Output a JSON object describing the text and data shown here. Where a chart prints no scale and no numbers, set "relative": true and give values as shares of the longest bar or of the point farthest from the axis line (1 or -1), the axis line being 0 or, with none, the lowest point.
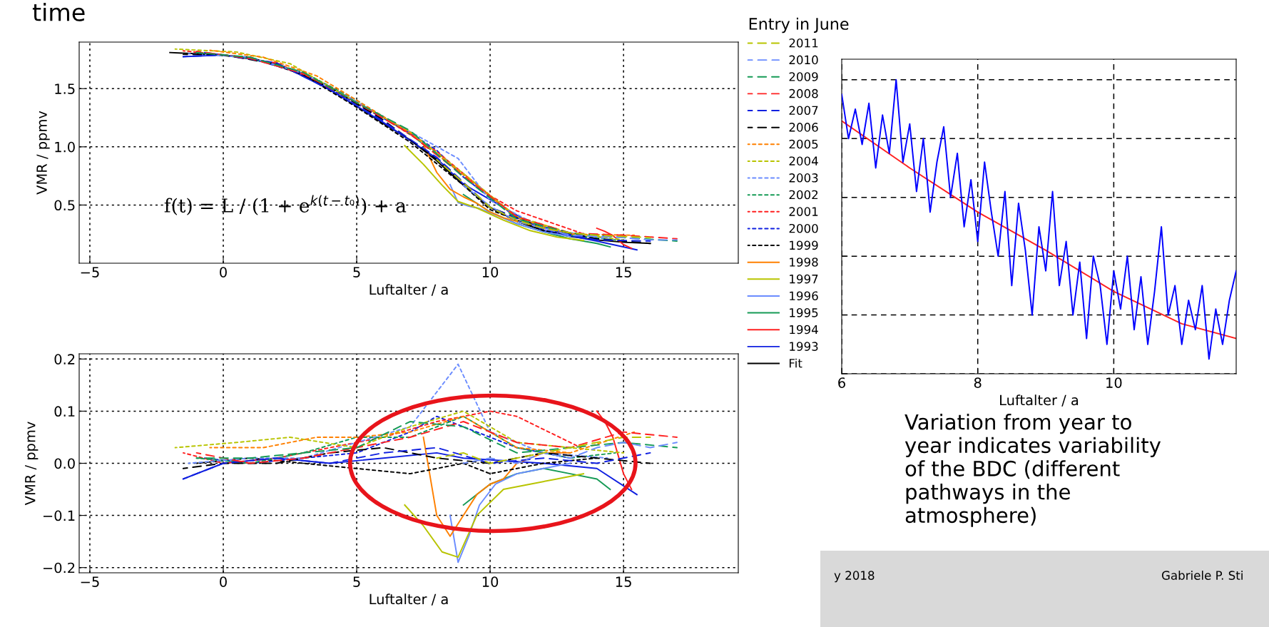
{
  "chart_data": [
    {
      "type": "line",
      "xlabel": "Luftalter / a",
      "ylabel": "VMR / ppmv",
      "xlim": [
        -5.4,
        19.3
      ],
      "ylim": [
        0,
        1.9
      ],
      "xticks": [
        {
          "value": -5,
          "label": "−5"
        },
        0,
        5,
        10,
        15
      ],
      "yticks": [
        {
          "value": 0.5,
          "label": "0.5"
        },
        {
          "value": 1.0,
          "label": "1.0"
        },
        {
          "value": 1.5,
          "label": "1.5"
        }
      ],
      "grid": true,
      "legend": "right",
      "legend_title": "Entry in June",
      "annotations": [
        "f(t) = L / (1 + e$^{k(t−t₀)}$) + a",
        "time"
      ],
      "series": [
        {
          "name": "2011",
          "color": "#b8c400",
          "line_style": "dashed",
          "x": [
            8,
            9,
            10,
            11,
            12,
            13,
            14,
            15,
            16
          ],
          "values": [
            0.89,
            0.69,
            0.48,
            0.37,
            0.3,
            0.26,
            0.24,
            0.23,
            0.22
          ]
        },
        {
          "name": "2010",
          "color": "#6b8cff",
          "line_style": "dashed",
          "x": [
            9,
            10,
            11,
            12,
            13,
            14,
            15,
            16,
            17
          ],
          "values": [
            0.67,
            0.49,
            0.36,
            0.3,
            0.24,
            0.23,
            0.22,
            0.2,
            0.2
          ]
        },
        {
          "name": "2009",
          "color": "#159a55",
          "line_style": "dashed",
          "x": [
            -1,
            1,
            3,
            5,
            7,
            9,
            11,
            13,
            15,
            17
          ],
          "values": [
            1.81,
            1.77,
            1.64,
            1.38,
            1.14,
            0.74,
            0.38,
            0.26,
            0.22,
            0.19
          ]
        },
        {
          "name": "2008",
          "color": "#ff2020",
          "line_style": "dashed",
          "x": [
            -1,
            1,
            3,
            5,
            7,
            9,
            11,
            13,
            15,
            17
          ],
          "values": [
            1.82,
            1.76,
            1.63,
            1.38,
            1.11,
            0.75,
            0.4,
            0.26,
            0.24,
            0.21
          ]
        },
        {
          "name": "2007",
          "color": "#1020e0",
          "line_style": "dashed",
          "x": [
            -1.5,
            0,
            2,
            4,
            6,
            8,
            10,
            12,
            14,
            16
          ],
          "values": [
            1.775,
            1.79,
            1.72,
            1.49,
            1.22,
            0.91,
            0.48,
            0.29,
            0.2,
            0.19
          ]
        },
        {
          "name": "2006",
          "color": "#000000",
          "line_style": "dashed",
          "x": [
            -1.5,
            0,
            2,
            4,
            6,
            8,
            10,
            12,
            14,
            16
          ],
          "values": [
            1.795,
            1.79,
            1.71,
            1.51,
            1.23,
            0.89,
            0.48,
            0.3,
            0.21,
            0.17
          ]
        },
        {
          "name": "2005",
          "color": "#ff8000",
          "line_style": "dotted",
          "x": [
            -0.5,
            1.5,
            3.5,
            5,
            7,
            9,
            11,
            13,
            15.4
          ],
          "values": [
            1.83,
            1.77,
            1.61,
            1.4,
            1.12,
            0.76,
            0.39,
            0.25,
            0.24
          ]
        },
        {
          "name": "2004",
          "color": "#b8c400",
          "line_style": "dotted",
          "x": [
            -1.8,
            0.5,
            2.5,
            5,
            7,
            9,
            11,
            13,
            15
          ],
          "values": [
            1.84,
            1.815,
            1.715,
            1.38,
            1.13,
            0.77,
            0.4,
            0.26,
            0.2
          ]
        },
        {
          "name": "2003",
          "color": "#6b8cff",
          "line_style": "dotted",
          "x": [
            -1.3,
            1,
            3,
            5,
            7,
            8.8,
            10,
            12,
            14.4
          ],
          "values": [
            1.8,
            1.77,
            1.63,
            1.39,
            1.13,
            0.9,
            0.54,
            0.3,
            0.21
          ]
        },
        {
          "name": "2002",
          "color": "#159a55",
          "line_style": "dotted",
          "x": [
            -1,
            1,
            3,
            5,
            7,
            9,
            11,
            13,
            14.7
          ],
          "values": [
            1.81,
            1.76,
            1.64,
            1.4,
            1.11,
            0.76,
            0.39,
            0.24,
            0.2
          ]
        },
        {
          "name": "2001",
          "color": "#ff2020",
          "line_style": "dotted",
          "x": [
            -1.5,
            0,
            2,
            4,
            6,
            8,
            10,
            11,
            13.4
          ],
          "values": [
            1.825,
            1.79,
            1.72,
            1.52,
            1.25,
            0.96,
            0.58,
            0.45,
            0.26
          ]
        },
        {
          "name": "2000",
          "color": "#1020e0",
          "line_style": "dotted",
          "x": [
            -0.7,
            1,
            3,
            5,
            7,
            8,
            9,
            11,
            13
          ],
          "values": [
            1.81,
            1.76,
            1.63,
            1.37,
            1.12,
            0.97,
            0.74,
            0.39,
            0.24
          ]
        },
        {
          "name": "1999",
          "color": "#000000",
          "line_style": "dotted",
          "x": [
            -1,
            1,
            3,
            5,
            7,
            9,
            10,
            12,
            14
          ],
          "values": [
            1.8,
            1.77,
            1.62,
            1.34,
            1.04,
            0.67,
            0.46,
            0.28,
            0.21
          ]
        },
        {
          "name": "1998",
          "color": "#ff8000",
          "line_style": "solid",
          "x": [
            7.5,
            8,
            8.5,
            9,
            9.5,
            10,
            10.5,
            11,
            12,
            13
          ],
          "values": [
            1.02,
            0.78,
            0.635,
            0.57,
            0.515,
            0.44,
            0.39,
            0.36,
            0.3,
            0.25
          ]
        },
        {
          "name": "1997",
          "color": "#b8c400",
          "line_style": "solid",
          "x": [
            6.8,
            7.5,
            8.2,
            8.8,
            9.5,
            10.5,
            11.5,
            12.5,
            13.5
          ],
          "values": [
            1.01,
            0.85,
            0.67,
            0.53,
            0.475,
            0.37,
            0.28,
            0.225,
            0.195
          ]
        },
        {
          "name": "1996",
          "color": "#6b8cff",
          "line_style": "solid",
          "x": [
            8.5,
            8.8,
            9.2,
            9.6,
            10.2,
            11,
            12,
            13
          ],
          "values": [
            0.675,
            0.52,
            0.49,
            0.47,
            0.416,
            0.34,
            0.27,
            0.23
          ]
        },
        {
          "name": "1995",
          "color": "#159a55",
          "line_style": "solid",
          "x": [
            9,
            9.5,
            10,
            11,
            12,
            13,
            14,
            14.5
          ],
          "values": [
            0.59,
            0.515,
            0.44,
            0.34,
            0.27,
            0.21,
            0.17,
            0.14
          ]
        },
        {
          "name": "1994",
          "color": "#ff2020",
          "line_style": "solid",
          "x": [
            14,
            14.3,
            14.6,
            15,
            15.3
          ],
          "values": [
            0.3,
            0.274,
            0.238,
            0.16,
            0.127
          ]
        },
        {
          "name": "1993",
          "color": "#1020e0",
          "line_style": "solid",
          "x": [
            -1.5,
            0,
            2,
            4,
            6,
            8,
            9,
            12,
            14,
            15.5
          ],
          "values": [
            1.775,
            1.79,
            1.72,
            1.49,
            1.21,
            0.9,
            0.68,
            0.28,
            0.19,
            0.115
          ]
        },
        {
          "name": "Fit",
          "color": "#000000",
          "line_style": "solid",
          "x": [
            -2,
            -1,
            0,
            1,
            2,
            3,
            4,
            5,
            6,
            7,
            8,
            9,
            10,
            11,
            12,
            13,
            14,
            15,
            16
          ],
          "values": [
            1.81,
            1.8,
            1.79,
            1.76,
            1.71,
            1.62,
            1.49,
            1.35,
            1.2,
            1.06,
            0.88,
            0.67,
            0.48,
            0.36,
            0.28,
            0.23,
            0.2,
            0.18,
            0.17
          ]
        }
      ]
    },
    {
      "type": "line",
      "xlabel": "Luftalter / a",
      "ylabel": "VMR / ppmv",
      "xlim": [
        -5.4,
        19.3
      ],
      "ylim": [
        -0.21,
        0.21
      ],
      "xticks": [
        {
          "value": -5,
          "label": "−5"
        },
        0,
        5,
        10,
        15
      ],
      "yticks": [
        {
          "value": -0.2,
          "label": "−0.2"
        },
        {
          "value": -0.1,
          "label": "−0.1"
        },
        {
          "value": 0.0,
          "label": "0.0"
        },
        0.1,
        0.2
      ],
      "grid": true,
      "series": [
        {
          "color": "#b8c400",
          "line_style": "dashed",
          "x": [
            8,
            9,
            10,
            11,
            12,
            13,
            14,
            15,
            16
          ],
          "values": [
            0.01,
            0.02,
            0.0,
            0.01,
            0.02,
            0.03,
            0.04,
            0.05,
            0.05
          ]
        },
        {
          "color": "#6b8cff",
          "line_style": "dashed",
          "x": [
            9,
            10,
            11,
            12,
            13,
            14,
            15,
            16,
            17
          ],
          "values": [
            0.0,
            0.01,
            0.0,
            0.02,
            0.01,
            0.03,
            0.04,
            0.03,
            0.04
          ]
        },
        {
          "color": "#159a55",
          "line_style": "dashed",
          "x": [
            -1,
            1,
            3,
            5,
            7,
            9,
            11,
            13,
            15,
            17
          ],
          "values": [
            0.01,
            0.01,
            0.02,
            0.03,
            0.08,
            0.07,
            0.02,
            0.03,
            0.04,
            0.03
          ]
        },
        {
          "color": "#ff2020",
          "line_style": "dashed",
          "x": [
            -1,
            1,
            3,
            5,
            7,
            9,
            11,
            13,
            15,
            17
          ],
          "values": [
            0.02,
            0.0,
            0.01,
            0.03,
            0.05,
            0.08,
            0.04,
            0.03,
            0.06,
            0.05
          ]
        },
        {
          "color": "#1020e0",
          "line_style": "dashed",
          "x": [
            -1.5,
            0,
            2,
            4,
            6,
            8,
            10,
            12,
            14,
            16
          ],
          "values": [
            -0.03,
            0.0,
            0.01,
            0.0,
            0.02,
            0.03,
            0.0,
            0.01,
            0.0,
            0.02
          ]
        },
        {
          "color": "#000000",
          "line_style": "dashed",
          "x": [
            -1.5,
            0,
            2,
            4,
            6,
            8,
            10,
            12,
            14,
            16
          ],
          "values": [
            -0.01,
            0.0,
            0.0,
            0.02,
            0.03,
            0.01,
            0.0,
            0.02,
            0.01,
            0.0
          ]
        },
        {
          "color": "#ff8000",
          "line_style": "dotted",
          "x": [
            -0.5,
            1.5,
            3.5,
            5,
            7,
            9,
            11,
            13,
            15.4
          ],
          "values": [
            0.03,
            0.03,
            0.05,
            0.05,
            0.06,
            0.09,
            0.03,
            0.02,
            0.06
          ]
        },
        {
          "color": "#b8c400",
          "line_style": "dotted",
          "x": [
            -1.8,
            0.5,
            2.5,
            5,
            7,
            9,
            11,
            13,
            15
          ],
          "values": [
            0.03,
            0.04,
            0.05,
            0.03,
            0.07,
            0.1,
            0.04,
            0.03,
            0.02
          ]
        },
        {
          "color": "#6b8cff",
          "line_style": "dotted",
          "x": [
            -1.3,
            1,
            3,
            5,
            7,
            8.8,
            10,
            12,
            14.4
          ],
          "values": [
            0.0,
            0.01,
            0.01,
            0.04,
            0.07,
            0.19,
            0.06,
            0.02,
            0.01
          ]
        },
        {
          "color": "#159a55",
          "line_style": "dotted",
          "x": [
            -1,
            1,
            3,
            5,
            7,
            9,
            11,
            13,
            14.7
          ],
          "values": [
            0.01,
            0.0,
            0.02,
            0.05,
            0.05,
            0.09,
            0.03,
            0.01,
            0.02
          ]
        },
        {
          "color": "#ff2020",
          "line_style": "dotted",
          "x": [
            -1.5,
            0,
            2,
            4,
            6,
            8,
            10,
            11,
            13.4
          ],
          "values": [
            0.02,
            0.0,
            0.01,
            0.03,
            0.05,
            0.08,
            0.1,
            0.09,
            0.03
          ]
        },
        {
          "color": "#1020e0",
          "line_style": "dotted",
          "x": [
            -0.7,
            1,
            3,
            5,
            7,
            8,
            9,
            11,
            13
          ],
          "values": [
            0.01,
            0.0,
            0.01,
            0.02,
            0.06,
            0.09,
            0.07,
            0.03,
            0.01
          ]
        },
        {
          "color": "#000000",
          "line_style": "dotted",
          "x": [
            -1,
            1,
            3,
            5,
            7,
            9,
            10,
            12,
            14
          ],
          "values": [
            0.0,
            0.01,
            0.0,
            -0.01,
            -0.02,
            0.0,
            -0.02,
            0.0,
            0.01
          ]
        },
        {
          "color": "#ff8000",
          "line_style": "solid",
          "x": [
            7.5,
            8,
            8.5,
            9,
            9.5,
            10,
            10.5,
            11,
            12,
            13
          ],
          "values": [
            0.05,
            -0.1,
            -0.14,
            -0.1,
            -0.06,
            -0.04,
            -0.03,
            0.0,
            0.02,
            0.02
          ]
        },
        {
          "color": "#b8c400",
          "line_style": "solid",
          "x": [
            6.8,
            7.5,
            8.2,
            8.8,
            9.5,
            10.5,
            11.5,
            12.5,
            13.5
          ],
          "values": [
            -0.08,
            -0.12,
            -0.17,
            -0.18,
            -0.1,
            -0.05,
            -0.04,
            -0.03,
            -0.02
          ]
        },
        {
          "color": "#6b8cff",
          "line_style": "solid",
          "x": [
            8.5,
            8.8,
            9.2,
            9.6,
            10.2,
            11,
            12,
            13
          ],
          "values": [
            -0.1,
            -0.19,
            -0.14,
            -0.08,
            -0.04,
            -0.02,
            -0.01,
            0.0
          ]
        },
        {
          "color": "#159a55",
          "line_style": "solid",
          "x": [
            9,
            9.5,
            10,
            11,
            12,
            13,
            14,
            14.5
          ],
          "values": [
            -0.08,
            -0.06,
            -0.04,
            -0.02,
            -0.01,
            -0.02,
            -0.03,
            -0.05
          ]
        },
        {
          "color": "#ff2020",
          "line_style": "solid",
          "x": [
            14,
            14.3,
            14.6,
            15,
            15.3
          ],
          "values": [
            0.1,
            0.08,
            0.05,
            -0.02,
            -0.05
          ]
        },
        {
          "color": "#1020e0",
          "line_style": "solid",
          "x": [
            -1.5,
            0,
            2,
            4,
            6,
            8,
            9,
            12,
            14,
            15.5
          ],
          "values": [
            -0.03,
            0.0,
            0.01,
            0.0,
            0.01,
            0.02,
            0.01,
            0.0,
            -0.01,
            -0.06
          ]
        }
      ]
    },
    {
      "type": "line",
      "relative": true,
      "xlabel": "Luftalter / a",
      "xlim": [
        6.0,
        11.8
      ],
      "xticks": [
        6,
        8,
        10
      ],
      "grid": true,
      "annotations": [
        "Variation from year to\nyear indicates variability\nof the BDC (different\npathways in the\natmosphere)",
        "y 2018",
        "Gabriele P. Sti"
      ],
      "series": [
        {
          "color": "#0000ff",
          "line_style": "solid",
          "x": [
            6.0,
            6.1,
            6.2,
            6.3,
            6.4,
            6.5,
            6.6,
            6.7,
            6.8,
            6.9,
            7.0,
            7.1,
            7.2,
            7.3,
            7.4,
            7.5,
            7.6,
            7.7,
            7.8,
            7.9,
            8.0,
            8.1,
            8.2,
            8.3,
            8.4,
            8.5,
            8.6,
            8.7,
            8.8,
            8.9,
            9.0,
            9.1,
            9.2,
            9.3,
            9.4,
            9.5,
            9.6,
            9.7,
            9.8,
            9.9,
            10.0,
            10.1,
            10.2,
            10.3,
            10.4,
            10.5,
            10.6,
            10.7,
            10.8,
            10.9,
            11.0,
            11.1,
            11.2,
            11.3,
            11.4,
            11.5,
            11.6,
            11.7,
            11.8
          ],
          "values": [
            0.95,
            0.8,
            0.9,
            0.78,
            0.92,
            0.7,
            0.88,
            0.75,
            1.0,
            0.72,
            0.85,
            0.62,
            0.8,
            0.55,
            0.72,
            0.84,
            0.6,
            0.75,
            0.5,
            0.66,
            0.45,
            0.72,
            0.55,
            0.4,
            0.62,
            0.3,
            0.58,
            0.42,
            0.2,
            0.5,
            0.35,
            0.62,
            0.3,
            0.45,
            0.2,
            0.38,
            0.12,
            0.4,
            0.3,
            0.1,
            0.35,
            0.22,
            0.4,
            0.15,
            0.33,
            0.1,
            0.28,
            0.5,
            0.2,
            0.3,
            0.1,
            0.25,
            0.15,
            0.3,
            0.05,
            0.22,
            0.1,
            0.25,
            0.35
          ]
        },
        {
          "color": "#ff2020",
          "line_style": "solid",
          "x": [
            6.0,
            7.0,
            8.0,
            9.0,
            10.0,
            11.0,
            11.8
          ],
          "values": [
            0.86,
            0.7,
            0.55,
            0.42,
            0.28,
            0.17,
            0.12
          ]
        }
      ]
    }
  ]
}
